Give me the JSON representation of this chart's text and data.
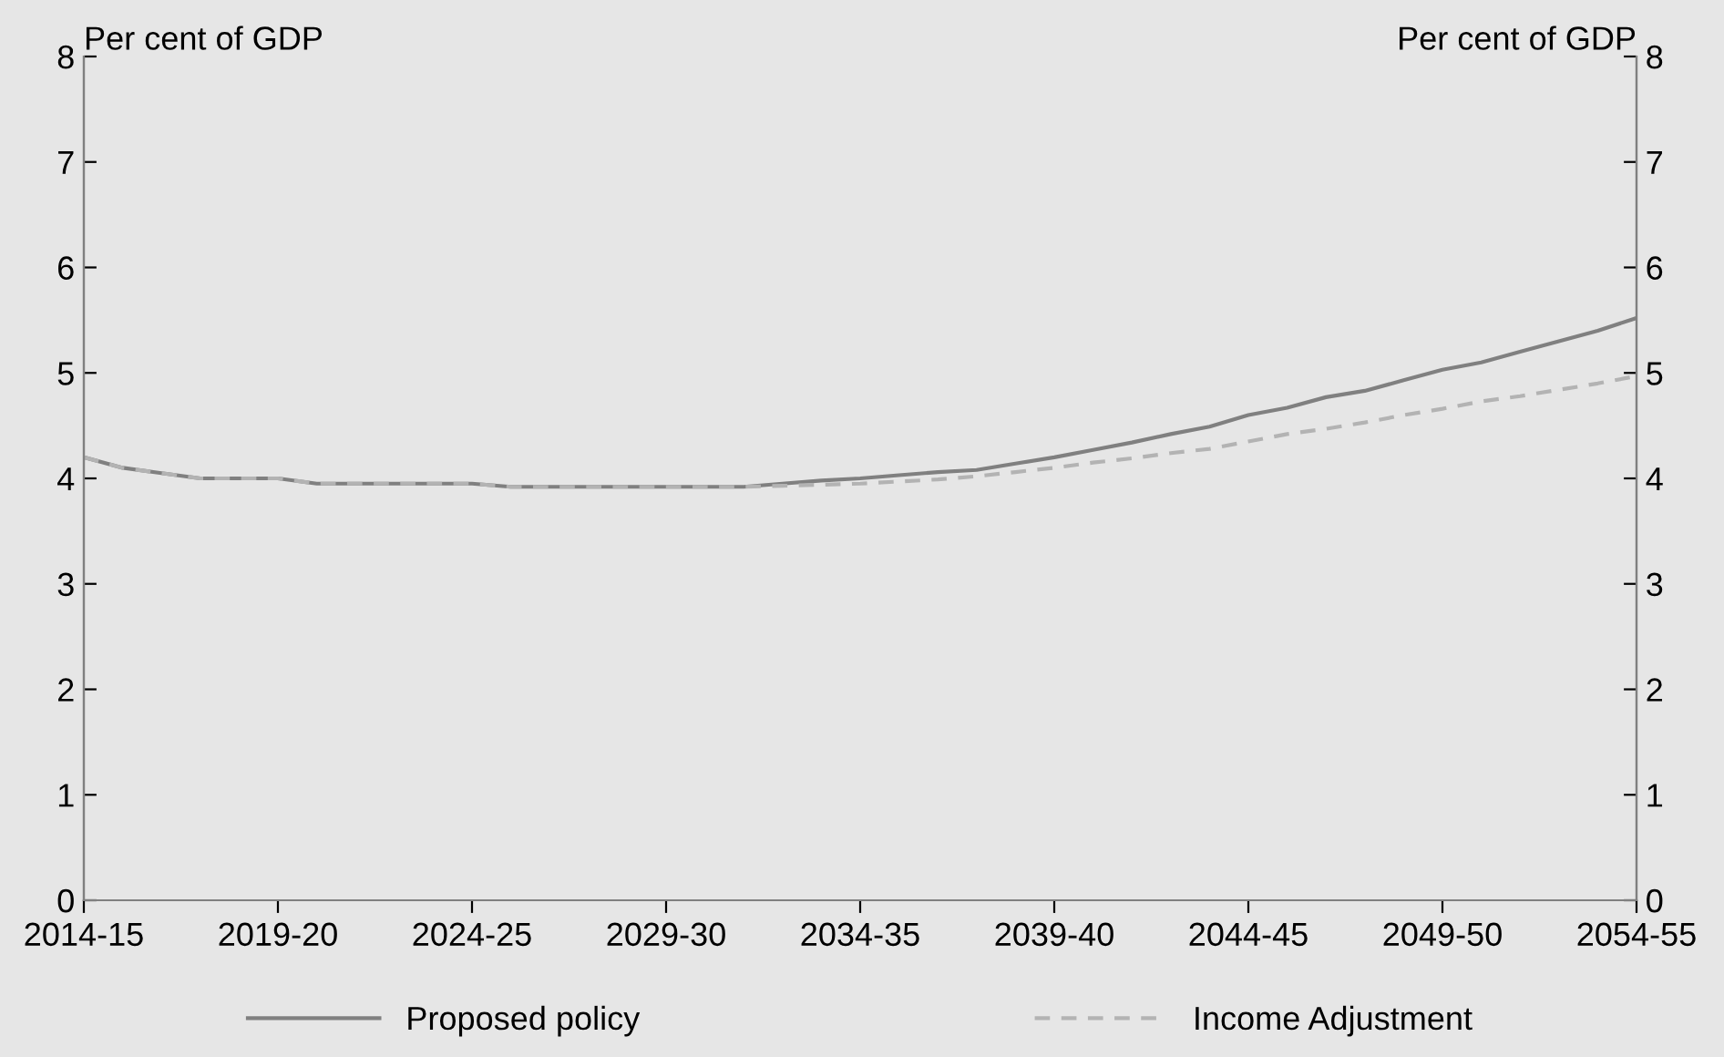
{
  "chart_data": {
    "type": "line",
    "categories": [
      "2014-15",
      null,
      null,
      null,
      null,
      "2019-20",
      null,
      null,
      null,
      null,
      "2024-25",
      null,
      null,
      null,
      null,
      "2029-30",
      null,
      null,
      null,
      null,
      "2034-35",
      null,
      null,
      null,
      null,
      "2039-40",
      null,
      null,
      null,
      null,
      "2044-45",
      null,
      null,
      null,
      null,
      "2049-50",
      null,
      null,
      null,
      null,
      "2054-55"
    ],
    "series": [
      {
        "name": "Proposed policy",
        "color": "#808080",
        "line_style": "solid",
        "values": [
          4.2,
          4.1,
          4.05,
          4.0,
          4.0,
          4.0,
          3.95,
          3.95,
          3.95,
          3.95,
          3.95,
          3.92,
          3.92,
          3.92,
          3.92,
          3.92,
          3.92,
          3.92,
          3.95,
          3.98,
          4.0,
          4.03,
          4.06,
          4.08,
          4.14,
          4.2,
          4.27,
          4.34,
          4.42,
          4.49,
          4.6,
          4.67,
          4.77,
          4.83,
          4.93,
          5.03,
          5.1,
          5.2,
          5.3,
          5.4,
          5.52
        ]
      },
      {
        "name": "Income Adjustment",
        "color": "#b3b3b3",
        "line_style": "dashed",
        "values": [
          4.2,
          4.1,
          4.05,
          4.0,
          4.0,
          4.0,
          3.95,
          3.95,
          3.95,
          3.95,
          3.95,
          3.92,
          3.92,
          3.92,
          3.92,
          3.92,
          3.92,
          3.92,
          3.93,
          3.94,
          3.95,
          3.97,
          3.99,
          4.02,
          4.06,
          4.1,
          4.15,
          4.19,
          4.24,
          4.28,
          4.35,
          4.42,
          4.47,
          4.53,
          4.6,
          4.66,
          4.73,
          4.78,
          4.84,
          4.9,
          4.97
        ]
      }
    ],
    "ylabel": "Per cent of GDP",
    "y2label": "Per cent of GDP",
    "ylim": [
      0,
      8
    ],
    "yticks": [
      0,
      1,
      2,
      3,
      4,
      5,
      6,
      7,
      8
    ],
    "y2lim": [
      0,
      8
    ],
    "y2ticks": [
      0,
      1,
      2,
      3,
      4,
      5,
      6,
      7,
      8
    ],
    "grid": false,
    "legend": "bottom",
    "marker": "none"
  }
}
